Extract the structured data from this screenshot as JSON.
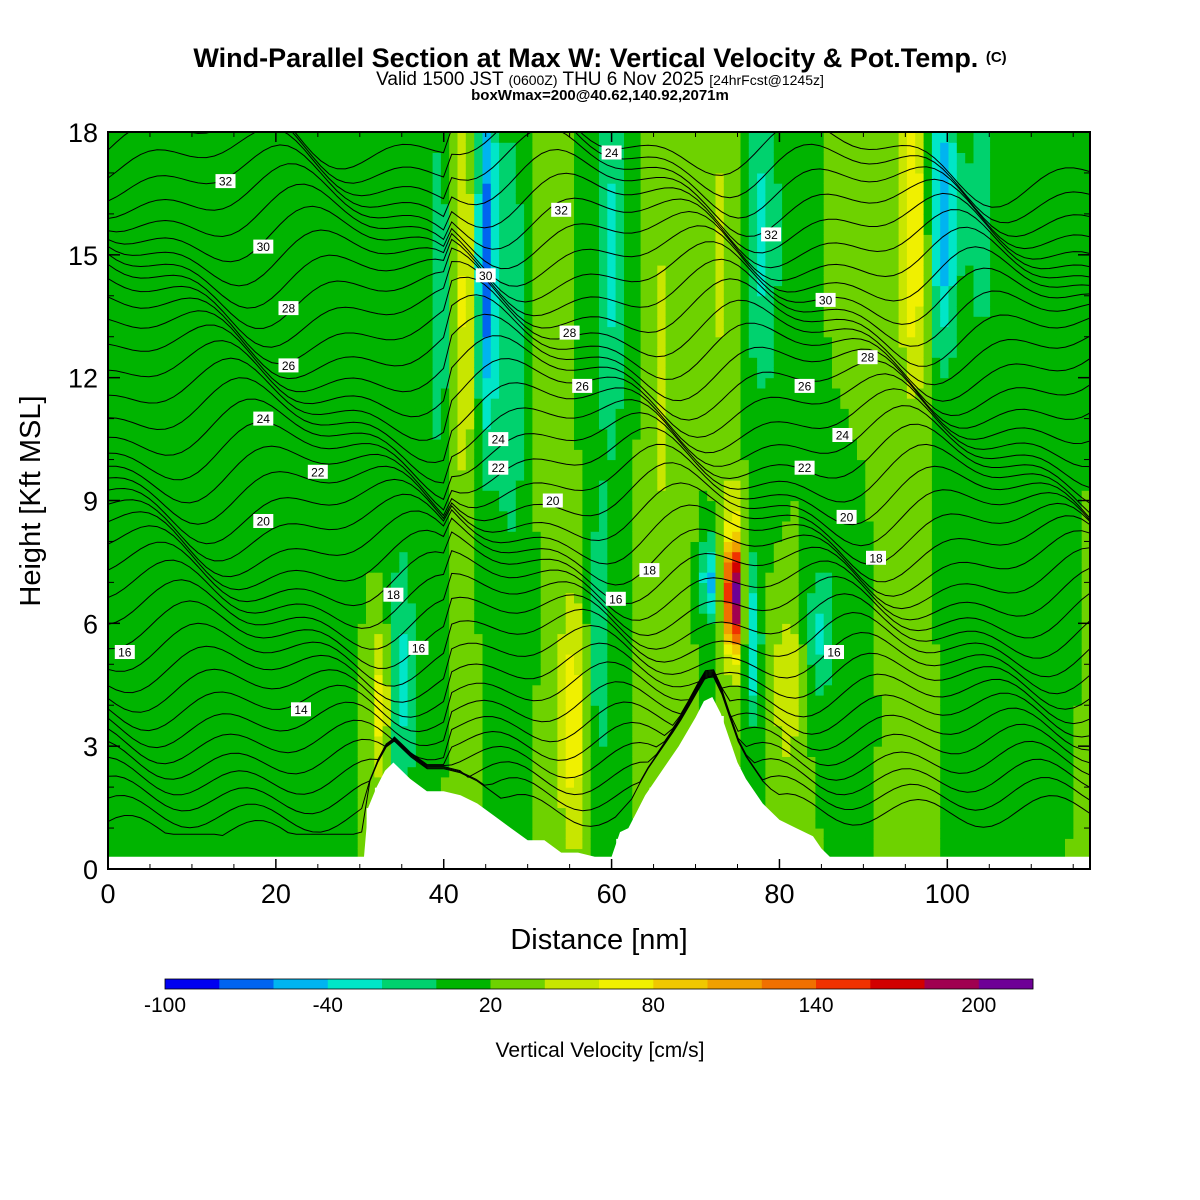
{
  "header": {
    "title": "Wind-Parallel Section at Max W: Vertical Velocity & Pot.Temp.",
    "title_mark": "(C)",
    "valid_prefix": "Valid 1500 JST",
    "valid_utc": "(0600Z)",
    "valid_day": "THU 6 Nov 2025",
    "forecast_tag": "[24hrFcst@1245z]",
    "box_info": "boxWmax=200@40.62,140.92,2071m"
  },
  "chart_data": {
    "type": "heatmap",
    "title": "Wind-Parallel Section at Max W: Vertical Velocity & Pot.Temp.",
    "xlabel": "Distance [nm]",
    "ylabel": "Height [Kft MSL]",
    "xlim": [
      0,
      117
    ],
    "ylim": [
      0,
      18
    ],
    "x_ticks": [
      0,
      20,
      40,
      60,
      80,
      100
    ],
    "y_ticks": [
      0,
      3,
      6,
      9,
      12,
      15,
      18
    ],
    "colorbar": {
      "label": "Vertical Velocity [cm/s]",
      "tick_labels": [
        "-100",
        "-40",
        "20",
        "80",
        "140",
        "200"
      ],
      "tick_values": [
        -100,
        -40,
        20,
        80,
        140,
        200
      ],
      "levels": [
        -100,
        -80,
        -60,
        -40,
        -20,
        0,
        20,
        40,
        60,
        80,
        100,
        120,
        140,
        160,
        180,
        200,
        220
      ],
      "colors": [
        "#0000f0",
        "#0064f0",
        "#00b4f0",
        "#00e6c8",
        "#00d26e",
        "#00b400",
        "#6ed200",
        "#c8e600",
        "#f0f000",
        "#f0c800",
        "#f0a000",
        "#f07000",
        "#f03200",
        "#d20000",
        "#a00050",
        "#6e0096"
      ]
    },
    "terrain": {
      "description": "Terrain cross-section (height Kft vs distance nm)",
      "x": [
        0,
        30.5,
        31,
        32,
        33,
        34,
        36,
        38,
        40,
        42,
        44,
        46,
        48,
        50,
        52,
        54,
        56,
        58,
        60,
        61,
        62,
        64,
        66,
        68,
        70,
        71,
        72,
        73,
        74,
        75,
        76,
        78,
        80,
        82,
        84,
        85,
        86,
        90,
        117
      ],
      "height": [
        0.3,
        0.3,
        1.5,
        2.0,
        2.4,
        2.6,
        2.2,
        1.9,
        1.9,
        1.8,
        1.6,
        1.3,
        1.0,
        0.7,
        0.7,
        0.4,
        0.4,
        0.3,
        0.3,
        0.9,
        1.0,
        1.8,
        2.4,
        3.0,
        3.7,
        4.1,
        4.2,
        3.8,
        3.2,
        2.6,
        2.2,
        1.6,
        1.2,
        1.0,
        0.8,
        0.5,
        0.3,
        0.3,
        0.3
      ]
    },
    "theta_contours": {
      "label": "Potential temperature (C)",
      "levels": [
        14,
        16,
        18,
        20,
        22,
        24,
        26,
        28,
        30,
        32,
        34
      ],
      "labels": [
        {
          "text": "32",
          "x": 14,
          "y": 16.8
        },
        {
          "text": "30",
          "x": 18.5,
          "y": 15.2
        },
        {
          "text": "28",
          "x": 21.5,
          "y": 13.7
        },
        {
          "text": "26",
          "x": 21.5,
          "y": 12.3
        },
        {
          "text": "24",
          "x": 18.5,
          "y": 11.0
        },
        {
          "text": "22",
          "x": 25,
          "y": 9.7
        },
        {
          "text": "20",
          "x": 18.5,
          "y": 8.5
        },
        {
          "text": "18",
          "x": 34,
          "y": 6.7
        },
        {
          "text": "16",
          "x": 2,
          "y": 5.3
        },
        {
          "text": "16",
          "x": 37,
          "y": 5.4
        },
        {
          "text": "14",
          "x": 23,
          "y": 3.9
        },
        {
          "text": "24",
          "x": 60,
          "y": 17.5
        },
        {
          "text": "32",
          "x": 54,
          "y": 16.1
        },
        {
          "text": "30",
          "x": 45,
          "y": 14.5
        },
        {
          "text": "28",
          "x": 55,
          "y": 13.1
        },
        {
          "text": "26",
          "x": 56.5,
          "y": 11.8
        },
        {
          "text": "24",
          "x": 46.5,
          "y": 10.5
        },
        {
          "text": "22",
          "x": 46.5,
          "y": 9.8
        },
        {
          "text": "20",
          "x": 53,
          "y": 9.0
        },
        {
          "text": "18",
          "x": 64.5,
          "y": 7.3
        },
        {
          "text": "16",
          "x": 60.5,
          "y": 6.6
        },
        {
          "text": "32",
          "x": 79,
          "y": 15.5
        },
        {
          "text": "30",
          "x": 85.5,
          "y": 13.9
        },
        {
          "text": "28",
          "x": 90.5,
          "y": 12.5
        },
        {
          "text": "26",
          "x": 83,
          "y": 11.8
        },
        {
          "text": "24",
          "x": 87.5,
          "y": 10.6
        },
        {
          "text": "22",
          "x": 83,
          "y": 9.8
        },
        {
          "text": "20",
          "x": 88,
          "y": 8.6
        },
        {
          "text": "18",
          "x": 91.5,
          "y": 7.6
        },
        {
          "text": "16",
          "x": 86.5,
          "y": 5.3
        }
      ]
    },
    "velocity_features": [
      {
        "kind": "max",
        "x": 74.5,
        "y": 6.6,
        "value": 200
      },
      {
        "kind": "updraft",
        "x": 42.5,
        "y": 15.5,
        "value": 60
      },
      {
        "kind": "downdraft",
        "x": 45,
        "y": 14.5,
        "value": -80
      },
      {
        "kind": "updraft",
        "x": 55.5,
        "y": 3.6,
        "value": 70
      },
      {
        "kind": "updraft",
        "x": 96,
        "y": 16,
        "value": 70
      },
      {
        "kind": "updraft",
        "x": 32.5,
        "y": 4.0,
        "value": 70
      },
      {
        "kind": "downdraft",
        "x": 71.5,
        "y": 7.1,
        "value": -60
      }
    ]
  }
}
